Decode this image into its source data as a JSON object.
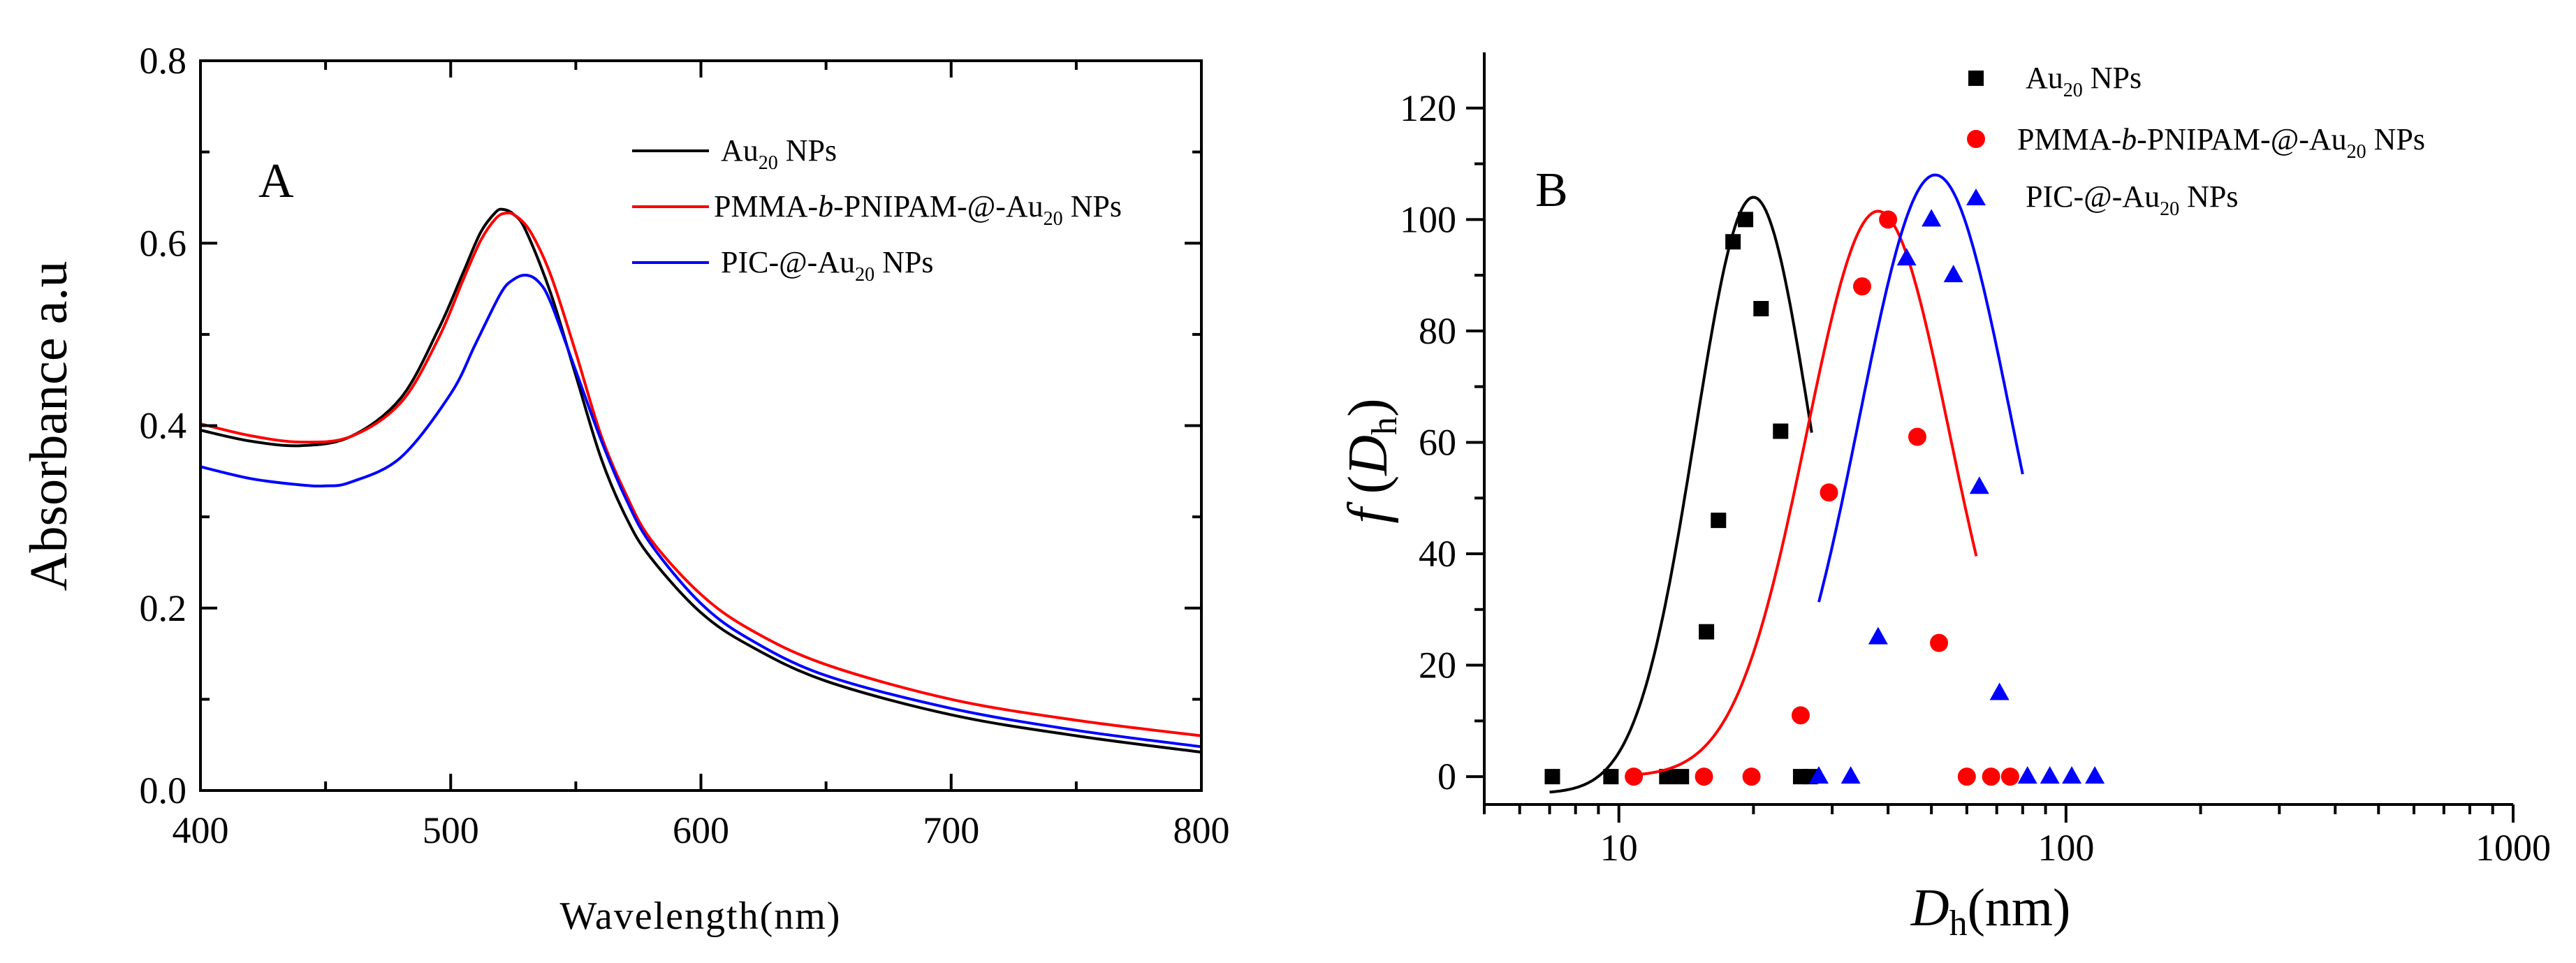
{
  "chart_data": [
    {
      "type": "line",
      "panel_label": "A",
      "xlabel": "Wavelength(nm)",
      "ylabel": "Absorbance a.u",
      "xlim": [
        400,
        800
      ],
      "ylim": [
        0.0,
        0.8
      ],
      "xticks": [
        "400",
        "500",
        "600",
        "700",
        "800"
      ],
      "yticks": [
        "0.0",
        "0.2",
        "0.4",
        "0.6",
        "0.8"
      ],
      "legend_position": "top-right",
      "legend": [
        {
          "prefix": "Au",
          "sub": "20",
          "suffix": " NPs"
        },
        {
          "prefix": "PMMA-",
          "italic": "b",
          "mid": "-PNIPAM-@-Au",
          "sub": "20",
          "suffix": " NPs"
        },
        {
          "prefix": "PIC-@-Au",
          "sub": "20",
          "suffix": " NPs"
        }
      ],
      "series": [
        {
          "name": "Au20 NPs",
          "color": "#000000",
          "x": [
            400,
            420,
            440,
            460,
            480,
            495,
            505,
            512,
            518,
            521,
            525,
            530,
            540,
            550,
            560,
            570,
            580,
            600,
            620,
            650,
            700,
            750,
            800
          ],
          "y": [
            0.395,
            0.383,
            0.378,
            0.388,
            0.43,
            0.505,
            0.568,
            0.612,
            0.634,
            0.637,
            0.632,
            0.614,
            0.545,
            0.455,
            0.365,
            0.3,
            0.255,
            0.195,
            0.158,
            0.12,
            0.083,
            0.06,
            0.042
          ]
        },
        {
          "name": "PMMA-b-PNIPAM-@-Au20 NPs",
          "color": "#ff0000",
          "x": [
            400,
            420,
            440,
            460,
            480,
            495,
            505,
            512,
            518,
            522,
            526,
            532,
            540,
            550,
            560,
            570,
            580,
            600,
            620,
            650,
            700,
            750,
            800
          ],
          "y": [
            0.402,
            0.389,
            0.382,
            0.388,
            0.425,
            0.495,
            0.56,
            0.603,
            0.627,
            0.633,
            0.63,
            0.612,
            0.565,
            0.48,
            0.39,
            0.325,
            0.275,
            0.215,
            0.176,
            0.138,
            0.1,
            0.077,
            0.06
          ]
        },
        {
          "name": "PIC-@-Au20 NPs",
          "color": "#0000ff",
          "x": [
            400,
            420,
            440,
            450,
            460,
            480,
            500,
            510,
            520,
            525,
            530,
            535,
            540,
            550,
            560,
            570,
            580,
            600,
            620,
            650,
            700,
            750,
            800
          ],
          "y": [
            0.355,
            0.342,
            0.335,
            0.334,
            0.338,
            0.365,
            0.435,
            0.49,
            0.545,
            0.56,
            0.565,
            0.558,
            0.535,
            0.46,
            0.385,
            0.32,
            0.27,
            0.205,
            0.165,
            0.126,
            0.09,
            0.066,
            0.048
          ]
        }
      ]
    },
    {
      "type": "scatter",
      "panel_label": "B",
      "xscale": "log",
      "xlabel_italic": "D",
      "xlabel_sub": "h",
      "xlabel_suffix": "(nm)",
      "ylabel_italic_f": "f",
      "ylabel_open": " (",
      "ylabel_italic_D": "D",
      "ylabel_sub": "h",
      "ylabel_close": ")",
      "xlim": [
        5,
        1000
      ],
      "ylim": [
        -5,
        130
      ],
      "xticks": [
        "10",
        "100",
        "1000"
      ],
      "yticks": [
        "0",
        "20",
        "40",
        "60",
        "80",
        "100",
        "120"
      ],
      "legend_position": "top",
      "legend": [
        {
          "prefix": " Au",
          "sub": "20",
          "suffix": " NPs",
          "marker": "square",
          "color": "#000000"
        },
        {
          "prefix": "PMMA-",
          "italic": "b",
          "mid": "-PNIPAM-@-Au",
          "sub": "20",
          "suffix": " NPs",
          "marker": "circle",
          "color": "#ff0000"
        },
        {
          "prefix": "PIC-@-Au",
          "sub": "20",
          "suffix": " NPs",
          "marker": "triangle",
          "color": "#0000ff"
        }
      ],
      "series": [
        {
          "name": "Au20 NPs",
          "marker": "square",
          "color": "#000000",
          "x": [
            7.1,
            9.6,
            12.8,
            13.8,
            15.7,
            16.7,
            18,
            19.2,
            20.8,
            23,
            25.5,
            26.8
          ],
          "y": [
            0,
            0,
            0,
            0,
            26,
            46,
            96,
            100,
            84,
            62,
            0,
            0
          ],
          "fit": {
            "mu": 20.0,
            "sigma": 0.13,
            "amp": 107,
            "base": -3,
            "xmin": 7,
            "xmax": 27
          }
        },
        {
          "name": "PMMA-b-PNIPAM-@-Au20 NPs",
          "marker": "circle",
          "color": "#ff0000",
          "x": [
            10.8,
            15.5,
            19.8,
            25.5,
            29.5,
            35,
            40,
            46.5,
            52,
            60,
            68,
            75
          ],
          "y": [
            0,
            0,
            0,
            11,
            51,
            88,
            100,
            61,
            24,
            0,
            0,
            0
          ],
          "fit": {
            "mu": 38.0,
            "sigma": 0.16,
            "amp": 101.5,
            "base": 0,
            "xmin": 11,
            "xmax": 63
          }
        },
        {
          "name": "PIC-@-Au20 NPs",
          "marker": "triangle",
          "color": "#0000ff",
          "x": [
            28,
            33,
            38,
            44,
            50,
            56,
            64,
            71,
            82,
            92,
            103,
            116
          ],
          "y": [
            0,
            0,
            25,
            93,
            100,
            90,
            52,
            15,
            0,
            0,
            0,
            0
          ],
          "fit": {
            "mu": 51.0,
            "sigma": 0.17,
            "amp": 111,
            "base": -3,
            "xmin": 28,
            "xmax": 80
          }
        }
      ]
    }
  ]
}
